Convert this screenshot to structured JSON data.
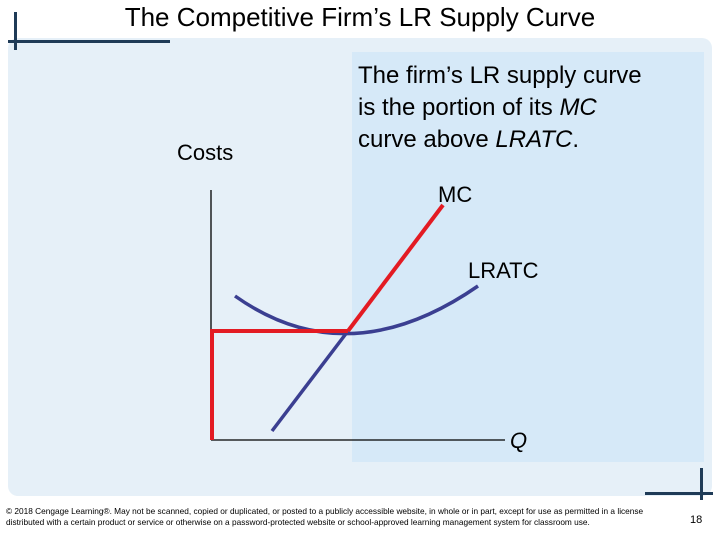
{
  "title": "The Competitive Firm’s LR Supply Curve",
  "callout": {
    "line1": "The firm’s LR supply curve",
    "line2_prefix": "is the portion of its ",
    "line2_em": "MC",
    "line3_prefix": "curve above ",
    "line3_em": "LRATC",
    "line3_suffix": "."
  },
  "axis_labels": {
    "y": "Costs",
    "x": "Q"
  },
  "curve_labels": {
    "mc": "MC",
    "lratc": "LRATC"
  },
  "colors": {
    "supply_curve": "#e31b23",
    "mc_line": "#3b3f91",
    "lratc_curve": "#3b3f91",
    "axes": "#000000",
    "panel": "#e6f0f8",
    "panel_inner": "#d6e9f8",
    "corner_bars": "#1f3b57"
  },
  "footer": {
    "copyright": "© 2018 Cengage Learning®. May not be scanned, copied or duplicated, or posted to a publicly accessible website, in whole or in part, except for use as permitted in a license distributed with a certain product or service or otherwise on a password-protected website or school-approved learning management system for classroom use.",
    "page_number": "18"
  }
}
